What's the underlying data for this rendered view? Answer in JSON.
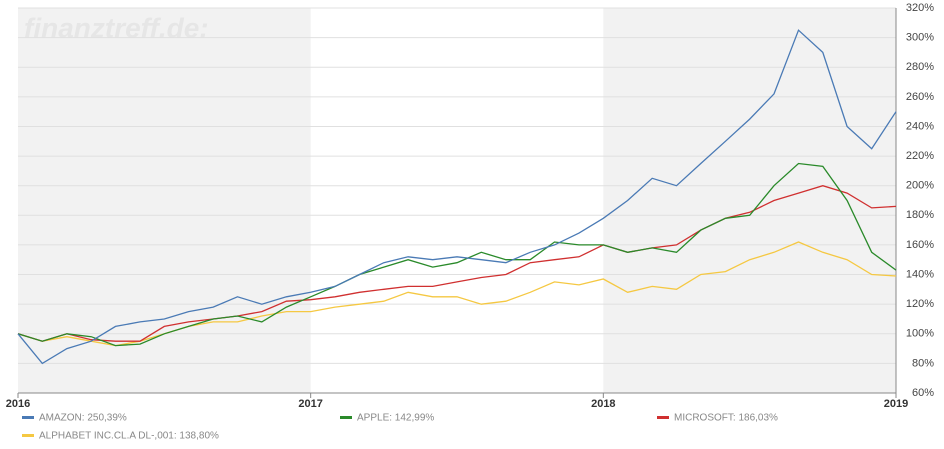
{
  "chart_data": {
    "type": "line",
    "watermark": "finanztreff.de:",
    "x": [
      2016,
      2016.083,
      2016.167,
      2016.25,
      2016.333,
      2016.417,
      2016.5,
      2016.583,
      2016.667,
      2016.75,
      2016.833,
      2016.917,
      2017,
      2017.083,
      2017.167,
      2017.25,
      2017.333,
      2017.417,
      2017.5,
      2017.583,
      2017.667,
      2017.75,
      2017.833,
      2017.917,
      2018,
      2018.083,
      2018.167,
      2018.25,
      2018.333,
      2018.417,
      2018.5,
      2018.583,
      2018.667,
      2018.75,
      2018.833,
      2018.917,
      2019
    ],
    "series": [
      {
        "name": "AMAZON: 250,39%",
        "color": "#4a7ab5",
        "values": [
          100,
          80,
          90,
          95,
          105,
          108,
          110,
          115,
          118,
          125,
          120,
          125,
          128,
          132,
          140,
          148,
          152,
          150,
          152,
          150,
          148,
          155,
          160,
          168,
          178,
          190,
          205,
          200,
          215,
          230,
          245,
          262,
          305,
          290,
          240,
          225,
          250
        ]
      },
      {
        "name": "APPLE: 142,99%",
        "color": "#2a8a2a",
        "values": [
          100,
          95,
          100,
          98,
          92,
          93,
          100,
          105,
          110,
          112,
          108,
          118,
          125,
          132,
          140,
          145,
          150,
          145,
          148,
          155,
          150,
          150,
          162,
          160,
          160,
          155,
          158,
          155,
          170,
          178,
          180,
          200,
          215,
          213,
          190,
          155,
          143
        ]
      },
      {
        "name": "MICROSOFT: 186,03%",
        "color": "#d03030",
        "values": [
          100,
          95,
          100,
          96,
          95,
          95,
          105,
          108,
          110,
          112,
          115,
          122,
          123,
          125,
          128,
          130,
          132,
          132,
          135,
          138,
          140,
          148,
          150,
          152,
          160,
          155,
          158,
          160,
          170,
          178,
          182,
          190,
          195,
          200,
          195,
          185,
          186
        ]
      },
      {
        "name": "ALPHABET INC.CL.A DL-,001: 138,80%",
        "color": "#f5c842",
        "values": [
          100,
          95,
          98,
          95,
          92,
          95,
          100,
          105,
          108,
          108,
          112,
          115,
          115,
          118,
          120,
          122,
          128,
          125,
          125,
          120,
          122,
          128,
          135,
          133,
          137,
          128,
          132,
          130,
          140,
          142,
          150,
          155,
          162,
          155,
          150,
          140,
          139
        ]
      }
    ],
    "xlim": [
      2016,
      2019
    ],
    "xticks": [
      2016,
      2017,
      2018,
      2019
    ],
    "ylim": [
      60,
      320
    ],
    "yticks": [
      {
        "value": 60,
        "label": "60%"
      },
      {
        "value": 80,
        "label": "80%"
      },
      {
        "value": 100,
        "label": "100%"
      },
      {
        "value": 120,
        "label": "120%"
      },
      {
        "value": 140,
        "label": "140%"
      },
      {
        "value": 160,
        "label": "160%"
      },
      {
        "value": 180,
        "label": "180%"
      },
      {
        "value": 200,
        "label": "200%"
      },
      {
        "value": 220,
        "label": "220%"
      },
      {
        "value": 240,
        "label": "240%"
      },
      {
        "value": 260,
        "label": "260%"
      },
      {
        "value": 280,
        "label": "280%"
      },
      {
        "value": 300,
        "label": "300%"
      },
      {
        "value": 320,
        "label": "320%"
      }
    ],
    "grid": true
  }
}
